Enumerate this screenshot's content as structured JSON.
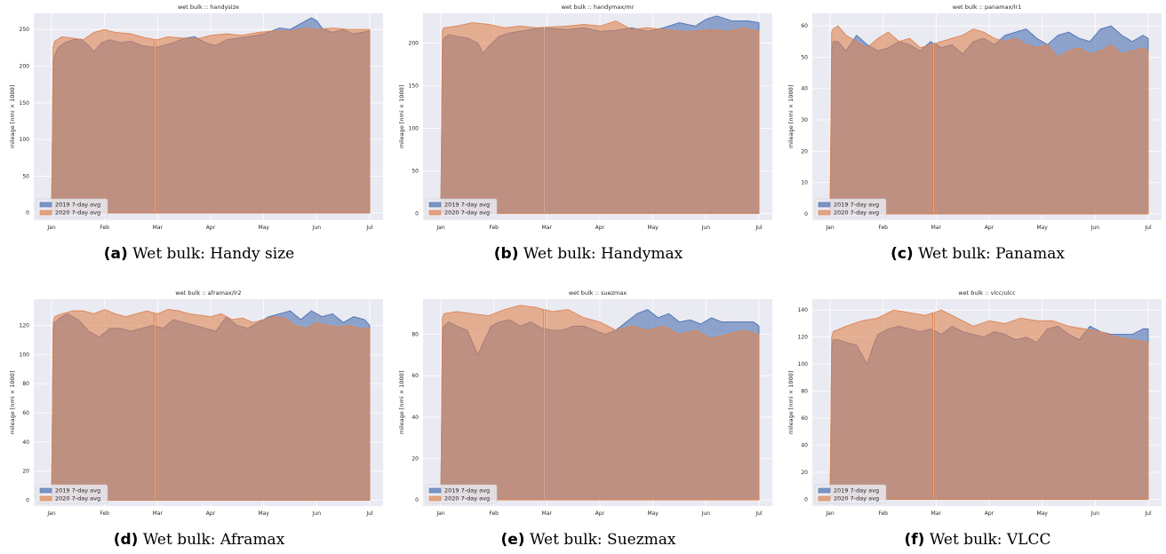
{
  "colors": {
    "background": "#eaeaf2",
    "grid": "#ffffff",
    "series_2019": "#4c72b0",
    "series_2020": "#dd8452",
    "overlap": "#a7867c"
  },
  "chart_data": [
    {
      "type": "area",
      "title": "wet bulk :: handysize",
      "caption_tag": "(a)",
      "caption_text": " Wet bulk: Handy size",
      "xlabel": "",
      "ylabel": "mileage [nmi × 1000]",
      "xtick_labels": [
        "Jan",
        "Feb",
        "Mar",
        "Apr",
        "May",
        "Jun",
        "Jul"
      ],
      "yticks": [
        0,
        50,
        100,
        150,
        200,
        250
      ],
      "ylim": [
        -10,
        272
      ],
      "legend": {
        "position": "lower-left",
        "entries": [
          "2019 7-day avg",
          "2020 7-day avg"
        ]
      },
      "series": [
        {
          "name": "2019 7-day avg",
          "x": [
            0,
            0.03,
            0.06,
            0.12,
            0.25,
            0.4,
            0.55,
            0.7,
            0.8,
            0.95,
            1.1,
            1.3,
            1.5,
            1.7,
            1.9,
            2.0,
            2.3,
            2.5,
            2.7,
            2.9,
            3.1,
            3.3,
            3.5,
            3.7,
            4.0,
            4.3,
            4.5,
            4.7,
            4.9,
            5.0,
            5.1,
            5.3,
            5.5,
            5.7,
            6.0
          ],
          "y": [
            0,
            200,
            215,
            225,
            232,
            236,
            237,
            228,
            220,
            232,
            236,
            232,
            234,
            228,
            226,
            226,
            232,
            238,
            240,
            232,
            228,
            236,
            238,
            240,
            244,
            252,
            250,
            258,
            266,
            262,
            252,
            246,
            250,
            244,
            248
          ]
        },
        {
          "name": "2020 7-day avg",
          "x": [
            0,
            0.03,
            0.06,
            0.2,
            0.4,
            0.6,
            0.8,
            1.0,
            1.2,
            1.5,
            1.8,
            2.0,
            2.2,
            2.5,
            2.8,
            3.0,
            3.3,
            3.6,
            3.9,
            4.2,
            4.5,
            4.8,
            5.0,
            5.3,
            5.6,
            6.0
          ],
          "y": [
            0,
            226,
            234,
            240,
            238,
            236,
            246,
            250,
            246,
            244,
            238,
            236,
            240,
            238,
            238,
            242,
            244,
            242,
            246,
            248,
            248,
            252,
            250,
            252,
            250,
            250
          ]
        }
      ]
    },
    {
      "type": "area",
      "title": "wet bulk :: handymax/mr",
      "caption_tag": "(b)",
      "caption_text": " Wet bulk: Handymax",
      "xlabel": "",
      "ylabel": "mileage [nmi × 1000]",
      "xtick_labels": [
        "Jan",
        "Feb",
        "Mar",
        "Apr",
        "May",
        "Jun",
        "Jul"
      ],
      "yticks": [
        0,
        50,
        100,
        150,
        200
      ],
      "ylim": [
        -8,
        235
      ],
      "legend": {
        "position": "lower-left",
        "entries": [
          "2019 7-day avg",
          "2020 7-day avg"
        ]
      },
      "series": [
        {
          "name": "2019 7-day avg",
          "x": [
            0,
            0.03,
            0.06,
            0.15,
            0.3,
            0.5,
            0.7,
            0.8,
            0.9,
            1.1,
            1.3,
            1.5,
            1.7,
            1.9,
            2.1,
            2.4,
            2.7,
            3.0,
            3.3,
            3.6,
            3.9,
            4.2,
            4.5,
            4.8,
            5.0,
            5.2,
            5.5,
            5.8,
            6.0
          ],
          "y": [
            0,
            195,
            206,
            210,
            208,
            206,
            200,
            188,
            196,
            208,
            212,
            214,
            216,
            218,
            217,
            216,
            218,
            214,
            215,
            218,
            214,
            218,
            224,
            220,
            228,
            232,
            226,
            226,
            224
          ]
        },
        {
          "name": "2020 7-day avg",
          "x": [
            0,
            0.03,
            0.06,
            0.3,
            0.6,
            0.9,
            1.2,
            1.5,
            1.8,
            2.1,
            2.4,
            2.7,
            3.0,
            3.3,
            3.6,
            3.9,
            4.2,
            4.5,
            4.8,
            5.1,
            5.4,
            5.7,
            6.0
          ],
          "y": [
            0,
            215,
            218,
            220,
            224,
            222,
            218,
            220,
            218,
            219,
            220,
            222,
            220,
            226,
            216,
            218,
            216,
            214,
            214,
            216,
            214,
            218,
            214
          ]
        }
      ]
    },
    {
      "type": "area",
      "title": "wet bulk :: panamax/lr1",
      "caption_tag": "(c)",
      "caption_text": " Wet bulk: Panamax",
      "xlabel": "",
      "ylabel": "mileage [nmi × 1000]",
      "xtick_labels": [
        "Jan",
        "Feb",
        "Mar",
        "Apr",
        "May",
        "Jun",
        "Jul"
      ],
      "yticks": [
        0,
        10,
        20,
        30,
        40,
        50,
        60
      ],
      "ylim": [
        -2,
        64
      ],
      "legend": {
        "position": "lower-left",
        "entries": [
          "2019 7-day avg",
          "2020 7-day avg"
        ]
      },
      "series": [
        {
          "name": "2019 7-day avg",
          "x": [
            0,
            0.03,
            0.06,
            0.15,
            0.3,
            0.5,
            0.7,
            0.9,
            1.1,
            1.3,
            1.5,
            1.7,
            1.9,
            2.1,
            2.3,
            2.5,
            2.7,
            2.9,
            3.1,
            3.3,
            3.5,
            3.7,
            3.9,
            4.1,
            4.3,
            4.5,
            4.7,
            4.9,
            5.1,
            5.3,
            5.5,
            5.7,
            5.9,
            6.0
          ],
          "y": [
            0,
            52,
            55,
            55,
            52,
            57,
            54,
            52,
            53,
            55,
            54,
            52,
            55,
            53,
            54,
            51,
            55,
            56,
            54,
            57,
            58,
            59,
            56,
            54,
            57,
            58,
            56,
            55,
            59,
            60,
            57,
            55,
            57,
            56
          ]
        },
        {
          "name": "2020 7-day avg",
          "x": [
            0,
            0.03,
            0.06,
            0.15,
            0.3,
            0.5,
            0.7,
            0.9,
            1.1,
            1.3,
            1.5,
            1.7,
            1.9,
            2.1,
            2.3,
            2.5,
            2.7,
            2.9,
            3.1,
            3.3,
            3.5,
            3.7,
            3.9,
            4.1,
            4.3,
            4.5,
            4.7,
            4.9,
            5.1,
            5.3,
            5.5,
            5.7,
            5.9,
            6.0
          ],
          "y": [
            0,
            58,
            59,
            60,
            57,
            55,
            53,
            56,
            58,
            55,
            56,
            53,
            54,
            55,
            56,
            57,
            59,
            58,
            56,
            55,
            56,
            54,
            53,
            54,
            50,
            52,
            53,
            51,
            52,
            54,
            51,
            52,
            53,
            52
          ]
        }
      ]
    },
    {
      "type": "area",
      "title": "wet bulk :: aframax/lr2",
      "caption_tag": "(d)",
      "caption_text": " Wet bulk: Aframax",
      "xlabel": "",
      "ylabel": "mileage [nmi × 1000]",
      "xtick_labels": [
        "Jan",
        "Feb",
        "Mar",
        "Apr",
        "May",
        "Jun",
        "Jul"
      ],
      "yticks": [
        0,
        20,
        40,
        60,
        80,
        100,
        120
      ],
      "ylim": [
        -4,
        138
      ],
      "legend": {
        "position": "lower-left",
        "entries": [
          "2019 7-day avg",
          "2020 7-day avg"
        ]
      },
      "series": [
        {
          "name": "2019 7-day avg",
          "x": [
            0,
            0.03,
            0.06,
            0.15,
            0.3,
            0.5,
            0.7,
            0.9,
            1.1,
            1.3,
            1.5,
            1.7,
            1.9,
            2.1,
            2.3,
            2.5,
            2.7,
            2.9,
            3.1,
            3.3,
            3.5,
            3.7,
            3.9,
            4.1,
            4.3,
            4.5,
            4.7,
            4.9,
            5.1,
            5.3,
            5.5,
            5.7,
            5.9,
            6.0
          ],
          "y": [
            0,
            115,
            122,
            125,
            128,
            124,
            116,
            112,
            118,
            118,
            116,
            118,
            120,
            118,
            124,
            122,
            120,
            118,
            116,
            126,
            120,
            118,
            122,
            126,
            128,
            130,
            124,
            130,
            126,
            128,
            122,
            126,
            124,
            120
          ]
        },
        {
          "name": "2020 7-day avg",
          "x": [
            0,
            0.03,
            0.06,
            0.2,
            0.4,
            0.6,
            0.8,
            1.0,
            1.2,
            1.4,
            1.6,
            1.8,
            2.0,
            2.2,
            2.4,
            2.6,
            2.8,
            3.0,
            3.2,
            3.4,
            3.6,
            3.8,
            4.0,
            4.2,
            4.4,
            4.6,
            4.8,
            5.0,
            5.2,
            5.4,
            5.6,
            5.8,
            6.0
          ],
          "y": [
            0,
            122,
            126,
            128,
            130,
            130,
            128,
            131,
            128,
            126,
            128,
            130,
            128,
            131,
            130,
            128,
            127,
            126,
            128,
            124,
            125,
            122,
            124,
            126,
            125,
            120,
            118,
            122,
            120,
            119,
            120,
            118,
            118
          ]
        }
      ]
    },
    {
      "type": "area",
      "title": "wet bulk :: suezmax",
      "caption_tag": "(e)",
      "caption_text": " Wet bulk: Suezmax",
      "xlabel": "",
      "ylabel": "mileage [nmi × 1000]",
      "xtick_labels": [
        "Jan",
        "Feb",
        "Mar",
        "Apr",
        "May",
        "Jun",
        "Jul"
      ],
      "yticks": [
        0,
        20,
        40,
        60,
        80
      ],
      "ylim": [
        -3,
        97
      ],
      "legend": {
        "position": "lower-left",
        "entries": [
          "2019 7-day avg",
          "2020 7-day avg"
        ]
      },
      "series": [
        {
          "name": "2019 7-day avg",
          "x": [
            0,
            0.03,
            0.06,
            0.15,
            0.3,
            0.5,
            0.7,
            0.8,
            0.95,
            1.1,
            1.3,
            1.5,
            1.7,
            1.9,
            2.1,
            2.3,
            2.5,
            2.7,
            2.9,
            3.1,
            3.3,
            3.5,
            3.7,
            3.9,
            4.1,
            4.3,
            4.5,
            4.7,
            4.9,
            5.1,
            5.3,
            5.5,
            5.7,
            5.9,
            6.0
          ],
          "y": [
            0,
            80,
            84,
            86,
            84,
            82,
            70,
            76,
            84,
            86,
            87,
            84,
            86,
            83,
            82,
            82,
            84,
            84,
            82,
            80,
            82,
            86,
            90,
            92,
            88,
            90,
            86,
            87,
            85,
            88,
            86,
            86,
            86,
            86,
            84
          ]
        },
        {
          "name": "2020 7-day avg",
          "x": [
            0,
            0.03,
            0.06,
            0.3,
            0.6,
            0.9,
            1.2,
            1.5,
            1.8,
            2.1,
            2.4,
            2.7,
            3.0,
            3.3,
            3.6,
            3.9,
            4.2,
            4.5,
            4.8,
            5.1,
            5.4,
            5.7,
            6.0
          ],
          "y": [
            0,
            88,
            90,
            91,
            90,
            89,
            92,
            94,
            93,
            91,
            92,
            88,
            86,
            82,
            84,
            82,
            84,
            80,
            82,
            78,
            80,
            82,
            80
          ]
        }
      ]
    },
    {
      "type": "area",
      "title": "wet bulk :: vlcc/ulcc",
      "caption_tag": "(f)",
      "caption_text": " Wet bulk: VLCC",
      "xlabel": "",
      "ylabel": "mileage [nmi × 1000]",
      "xtick_labels": [
        "Jan",
        "Feb",
        "Mar",
        "Apr",
        "May",
        "Jun",
        "Jul"
      ],
      "yticks": [
        0,
        20,
        40,
        60,
        80,
        100,
        120,
        140
      ],
      "ylim": [
        -5,
        148
      ],
      "legend": {
        "position": "lower-left",
        "entries": [
          "2019 7-day avg",
          "2020 7-day avg"
        ]
      },
      "series": [
        {
          "name": "2019 7-day avg",
          "x": [
            0,
            0.03,
            0.06,
            0.15,
            0.3,
            0.5,
            0.7,
            0.8,
            0.9,
            1.0,
            1.1,
            1.3,
            1.5,
            1.7,
            1.9,
            2.1,
            2.3,
            2.5,
            2.7,
            2.9,
            3.1,
            3.3,
            3.5,
            3.7,
            3.9,
            4.1,
            4.3,
            4.5,
            4.7,
            4.9,
            5.1,
            5.3,
            5.5,
            5.7,
            5.9,
            6.0
          ],
          "y": [
            0,
            112,
            118,
            118,
            116,
            114,
            100,
            112,
            122,
            124,
            126,
            128,
            126,
            124,
            126,
            122,
            128,
            124,
            122,
            120,
            124,
            122,
            118,
            120,
            116,
            126,
            128,
            122,
            118,
            128,
            124,
            122,
            122,
            122,
            126,
            126
          ]
        },
        {
          "name": "2020 7-day avg",
          "x": [
            0,
            0.03,
            0.06,
            0.3,
            0.6,
            0.9,
            1.2,
            1.5,
            1.8,
            2.1,
            2.4,
            2.7,
            3.0,
            3.3,
            3.6,
            3.9,
            4.2,
            4.5,
            4.8,
            5.1,
            5.4,
            5.7,
            6.0
          ],
          "y": [
            0,
            120,
            124,
            128,
            132,
            134,
            140,
            138,
            136,
            140,
            134,
            128,
            132,
            130,
            134,
            132,
            132,
            128,
            126,
            124,
            120,
            118,
            116
          ]
        }
      ]
    }
  ]
}
